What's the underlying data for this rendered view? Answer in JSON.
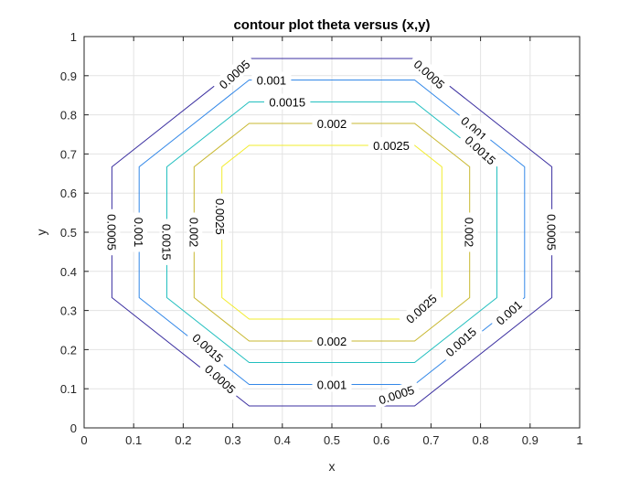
{
  "chart_data": {
    "type": "contour",
    "title": "contour plot theta versus (x,y)",
    "xlabel": "x",
    "ylabel": "y",
    "xlim": [
      0,
      1
    ],
    "ylim": [
      0,
      1
    ],
    "xticks": [
      "0",
      "0.1",
      "0.2",
      "0.3",
      "0.4",
      "0.5",
      "0.6",
      "0.7",
      "0.8",
      "0.9",
      "1"
    ],
    "yticks": [
      "0",
      "0.1",
      "0.2",
      "0.3",
      "0.4",
      "0.5",
      "0.6",
      "0.7",
      "0.8",
      "0.9",
      "1"
    ],
    "grid": true,
    "box": true,
    "levels": [
      {
        "level": "0.0005",
        "color": "#3b2fa0",
        "polygon": [
          [
            0.333,
            0.944
          ],
          [
            0.667,
            0.944
          ],
          [
            0.944,
            0.667
          ],
          [
            0.944,
            0.333
          ],
          [
            0.667,
            0.056
          ],
          [
            0.333,
            0.056
          ],
          [
            0.056,
            0.333
          ],
          [
            0.056,
            0.667
          ]
        ],
        "labels": [
          [
            0.303,
            0.904,
            -42
          ],
          [
            0.697,
            0.904,
            42
          ],
          [
            0.944,
            0.5,
            90
          ],
          [
            0.63,
            0.085,
            -18
          ],
          [
            0.275,
            0.125,
            42
          ],
          [
            0.056,
            0.5,
            90
          ]
        ]
      },
      {
        "level": "0.001",
        "color": "#3388e8",
        "polygon": [
          [
            0.333,
            0.889
          ],
          [
            0.667,
            0.889
          ],
          [
            0.889,
            0.667
          ],
          [
            0.889,
            0.333
          ],
          [
            0.667,
            0.111
          ],
          [
            0.333,
            0.111
          ],
          [
            0.111,
            0.333
          ],
          [
            0.111,
            0.667
          ]
        ],
        "labels": [
          [
            0.378,
            0.889,
            0
          ],
          [
            0.787,
            0.765,
            42
          ],
          [
            0.857,
            0.295,
            -42
          ],
          [
            0.5,
            0.111,
            0
          ],
          [
            0.111,
            0.5,
            90
          ]
        ]
      },
      {
        "level": "0.0015",
        "color": "#22bfbf",
        "polygon": [
          [
            0.333,
            0.833
          ],
          [
            0.667,
            0.833
          ],
          [
            0.833,
            0.667
          ],
          [
            0.833,
            0.333
          ],
          [
            0.667,
            0.167
          ],
          [
            0.333,
            0.167
          ],
          [
            0.167,
            0.333
          ],
          [
            0.167,
            0.667
          ]
        ],
        "labels": [
          [
            0.41,
            0.833,
            0
          ],
          [
            0.8,
            0.71,
            42
          ],
          [
            0.76,
            0.22,
            -42
          ],
          [
            0.25,
            0.205,
            42
          ],
          [
            0.167,
            0.475,
            90
          ]
        ]
      },
      {
        "level": "0.002",
        "color": "#c8b830",
        "polygon": [
          [
            0.333,
            0.778
          ],
          [
            0.667,
            0.778
          ],
          [
            0.778,
            0.667
          ],
          [
            0.778,
            0.333
          ],
          [
            0.667,
            0.222
          ],
          [
            0.333,
            0.222
          ],
          [
            0.222,
            0.333
          ],
          [
            0.222,
            0.667
          ]
        ],
        "labels": [
          [
            0.5,
            0.778,
            0
          ],
          [
            0.778,
            0.5,
            90
          ],
          [
            0.5,
            0.222,
            0
          ],
          [
            0.222,
            0.5,
            90
          ]
        ]
      },
      {
        "level": "0.0025",
        "color": "#f2ec2e",
        "polygon": [
          [
            0.333,
            0.722
          ],
          [
            0.667,
            0.722
          ],
          [
            0.722,
            0.667
          ],
          [
            0.722,
            0.333
          ],
          [
            0.667,
            0.278
          ],
          [
            0.333,
            0.278
          ],
          [
            0.278,
            0.333
          ],
          [
            0.278,
            0.667
          ]
        ],
        "labels": [
          [
            0.62,
            0.722,
            0
          ],
          [
            0.275,
            0.54,
            90
          ],
          [
            0.68,
            0.305,
            -42
          ]
        ]
      }
    ]
  }
}
